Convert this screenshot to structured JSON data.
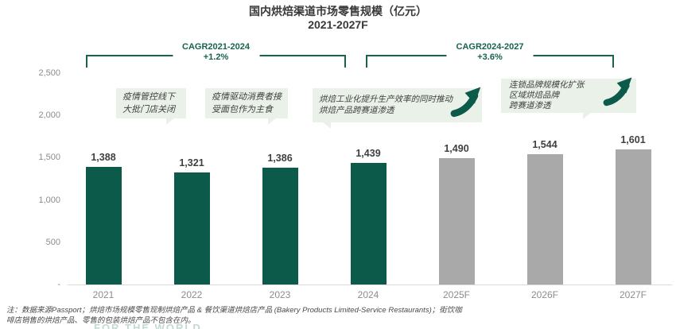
{
  "accent_colors": {
    "green_bar": "#0B5A4A",
    "gray_bar": "#A9A9A9",
    "cagr_green": "#176350",
    "callout_bg": "#EAF1E9",
    "callout_text": "#3F3F3F",
    "label_dark": "#404040",
    "axis_gray": "#8C8C8C",
    "title_dark": "#383838",
    "baseline": "#D9D9D9",
    "watermark": "#C2DAD3"
  },
  "title": {
    "line1": "国内烘焙渠道市场零售规模（亿元）",
    "line2": "2021-2027F"
  },
  "cagr_brackets": [
    {
      "label": "CAGR2021-2024",
      "value": "+1.2%"
    },
    {
      "label": "CAGR2024-2027",
      "value": "+3.6%"
    }
  ],
  "annotations": [
    {
      "lines": [
        "疫情管控线下",
        "大批门店关闭"
      ],
      "arrow": false
    },
    {
      "lines": [
        "疫情驱动消费者接",
        "受面包作为主食"
      ],
      "arrow": false
    },
    {
      "lines": [
        "烘焙工业化提升生产效率的同时推动",
        "烘焙产品跨赛道渗透"
      ],
      "arrow": true
    },
    {
      "lines": [
        "连锁品牌规模化扩张",
        "区域烘焙品牌",
        "跨赛道渗透"
      ],
      "arrow": true
    }
  ],
  "chart_data": {
    "type": "bar",
    "title": "国内烘焙渠道市场零售规模（亿元）2021-2027F",
    "categories": [
      "2021",
      "2022",
      "2023",
      "2024",
      "2025F",
      "2026F",
      "2027F"
    ],
    "values": [
      1388,
      1321,
      1386,
      1439,
      1490,
      1544,
      1601
    ],
    "value_labels": [
      "1,388",
      "1,321",
      "1,386",
      "1,439",
      "1,490",
      "1,544",
      "1,601"
    ],
    "actual_categories": [
      "2021",
      "2022",
      "2023",
      "2024"
    ],
    "forecast_categories": [
      "2025F",
      "2026F",
      "2027F"
    ],
    "cagr": [
      {
        "period": "2021-2024",
        "value": "+1.2%"
      },
      {
        "period": "2024-2027",
        "value": "+3.6%"
      }
    ],
    "ylim": [
      0,
      2500
    ],
    "yticks": [
      {
        "value": 2500,
        "label": "2,500"
      },
      {
        "value": 2000,
        "label": "2,000"
      },
      {
        "value": 1500,
        "label": "1,500"
      },
      {
        "value": 1000,
        "label": "1,000"
      },
      {
        "value": 500,
        "label": "500"
      },
      {
        "value": 0,
        "label": "-"
      }
    ],
    "grid": false,
    "legend": "none"
  },
  "footnote": {
    "line1": "注：数据来源Passport；烘焙市场规模零售现制烘焙产品 & 餐饮渠道烘焙店产品 (Bakery Products Limited-Service Restaurants)；街饮咖",
    "line2": "啡店销售的烘焙产品、零售的包装烘焙产品不包含在内。"
  },
  "watermark": "FOR THE WORLD"
}
